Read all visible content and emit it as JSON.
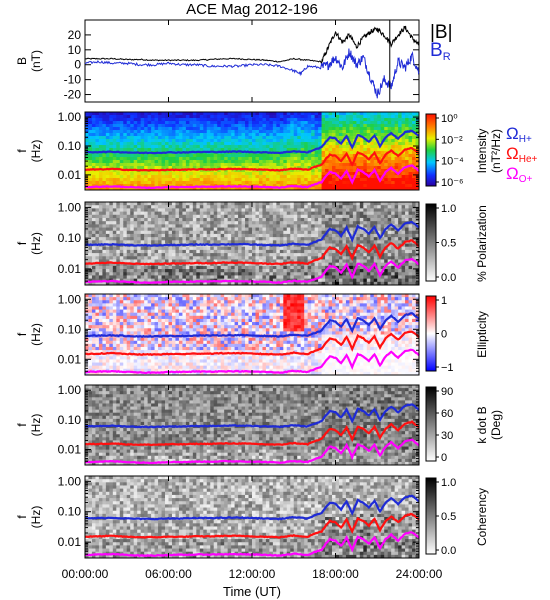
{
  "figure": {
    "title": "ACE Mag 2012-196"
  },
  "colors": {
    "black": "#000000",
    "blue": "#1f2bd6",
    "red": "#ff1010",
    "magenta": "#ff00ff"
  },
  "chart_data": [
    {
      "type": "line",
      "panel": "B",
      "ylabel": "B",
      "yunit": "(nT)",
      "ylim": [
        -25,
        30
      ],
      "yticks": [
        -20,
        -10,
        0,
        10,
        20
      ],
      "legend": [
        "|B|",
        "B_R"
      ],
      "legend_display": {
        "absB": "|B|",
        "br": "B",
        "br_sub": "R"
      },
      "series": [
        {
          "name": "|B|",
          "color": "#000000",
          "x": [
            0,
            1,
            2,
            3,
            4,
            5,
            6,
            7,
            8,
            9,
            10,
            11,
            12,
            13,
            14,
            15,
            16,
            17,
            17.5,
            18,
            18.5,
            19,
            19.5,
            20,
            20.5,
            21,
            21.5,
            22,
            22.5,
            23,
            23.5,
            24
          ],
          "y": [
            4,
            4,
            4,
            3.5,
            3.5,
            3,
            3,
            3,
            3,
            3.5,
            4,
            4,
            3.5,
            3,
            2,
            4,
            3,
            2,
            12,
            22,
            15,
            20,
            12,
            18,
            22,
            24,
            20,
            14,
            20,
            25,
            18,
            13
          ]
        },
        {
          "name": "B_R",
          "color": "#1f2bd6",
          "x": [
            0,
            1,
            2,
            3,
            4,
            5,
            6,
            7,
            8,
            9,
            10,
            11,
            12,
            13,
            14,
            15,
            15.5,
            16,
            17,
            17.5,
            18,
            18.5,
            19,
            19.5,
            20,
            20.5,
            21,
            21.5,
            22,
            22.5,
            23,
            23.5,
            24
          ],
          "y": [
            1,
            2,
            1,
            1,
            0,
            0,
            1,
            0,
            0,
            -1,
            -1,
            -1,
            0,
            0,
            -1,
            -4,
            -6,
            -1,
            -2,
            0,
            5,
            -2,
            9,
            0,
            5,
            -8,
            -20,
            -10,
            -15,
            2,
            -2,
            6,
            -5
          ]
        }
      ],
      "marker_vline_hour": 21.9
    },
    {
      "type": "heatmap",
      "panel": "Intensity",
      "ylabel": "f",
      "yunit": "(Hz)",
      "yscale": "log",
      "ylim": [
        0.003,
        1.5
      ],
      "yticks": [
        "1.00",
        "0.10",
        "0.01"
      ],
      "colorbar": {
        "label": "Intensity",
        "unit": "(nT²/Hz)",
        "scale": "log",
        "ticks": [
          "10⁰",
          "10⁻²",
          "10⁻⁴",
          "10⁻⁶"
        ]
      },
      "legend": {
        "h": "Ω",
        "h_sub": "H+",
        "he": "Ω",
        "he_sub": "He+",
        "o": "Ω",
        "o_sub": "O+"
      }
    },
    {
      "type": "heatmap",
      "panel": "% Polarization",
      "ylabel": "f",
      "yunit": "(Hz)",
      "yscale": "log",
      "colorbar": {
        "label": "% Polarization",
        "ticks": [
          "1.0",
          "0.5",
          "0.0"
        ],
        "range": [
          0,
          1
        ]
      }
    },
    {
      "type": "heatmap",
      "panel": "Ellipticity",
      "ylabel": "f",
      "yunit": "(Hz)",
      "yscale": "log",
      "colorbar": {
        "label": "Ellipticity",
        "ticks": [
          "1",
          "0",
          "−1"
        ],
        "range": [
          -1,
          1
        ]
      }
    },
    {
      "type": "heatmap",
      "panel": "k dot B",
      "ylabel": "f",
      "yunit": "(Hz)",
      "yscale": "log",
      "colorbar": {
        "label": "k dot B",
        "unit": "(Deg)",
        "ticks": [
          "90",
          "60",
          "30",
          "0"
        ],
        "range": [
          0,
          90
        ]
      }
    },
    {
      "type": "heatmap",
      "panel": "Coherency",
      "ylabel": "f",
      "yunit": "(Hz)",
      "yscale": "log",
      "colorbar": {
        "label": "Coherency",
        "ticks": [
          "1.0",
          "0.5",
          "0.0"
        ],
        "range": [
          0,
          1
        ]
      }
    },
    {
      "type": "line",
      "panel": "gyrofrequency overlays",
      "x": [
        0,
        1,
        2,
        3,
        4,
        5,
        6,
        7,
        8,
        9,
        10,
        11,
        12,
        13,
        14,
        15,
        16,
        16.5,
        17,
        17.3,
        17.6,
        18,
        18.4,
        18.8,
        19.2,
        19.6,
        20,
        20.4,
        20.8,
        21.2,
        21.6,
        22,
        22.5,
        23,
        23.5,
        24
      ],
      "series": [
        {
          "name": "ΩH+",
          "color": "#1f2bd6",
          "values": [
            0.06,
            0.062,
            0.063,
            0.06,
            0.058,
            0.058,
            0.06,
            0.06,
            0.062,
            0.062,
            0.063,
            0.064,
            0.062,
            0.06,
            0.058,
            0.066,
            0.06,
            0.075,
            0.09,
            0.14,
            0.2,
            0.18,
            0.12,
            0.22,
            0.09,
            0.24,
            0.2,
            0.14,
            0.23,
            0.1,
            0.2,
            0.28,
            0.18,
            0.3,
            0.34,
            0.22
          ]
        },
        {
          "name": "ΩHe+",
          "color": "#ff1010",
          "values": [
            0.015,
            0.0155,
            0.016,
            0.015,
            0.0145,
            0.0145,
            0.015,
            0.015,
            0.0155,
            0.0155,
            0.016,
            0.016,
            0.0155,
            0.015,
            0.0145,
            0.0165,
            0.015,
            0.019,
            0.0225,
            0.035,
            0.05,
            0.045,
            0.03,
            0.055,
            0.0225,
            0.06,
            0.05,
            0.035,
            0.058,
            0.025,
            0.05,
            0.07,
            0.045,
            0.075,
            0.085,
            0.055
          ]
        },
        {
          "name": "ΩO+",
          "color": "#ff00ff",
          "values": [
            0.0038,
            0.0039,
            0.004,
            0.0038,
            0.0036,
            0.0036,
            0.0038,
            0.0038,
            0.0039,
            0.0039,
            0.004,
            0.004,
            0.0039,
            0.0038,
            0.0036,
            0.0041,
            0.0038,
            0.0047,
            0.0056,
            0.0088,
            0.0125,
            0.0112,
            0.0075,
            0.0138,
            0.0056,
            0.015,
            0.0125,
            0.0088,
            0.0145,
            0.0063,
            0.0125,
            0.0175,
            0.0112,
            0.0188,
            0.0212,
            0.0138
          ]
        }
      ]
    }
  ],
  "xaxis": {
    "label": "Time (UT)",
    "ticks": [
      "00:00:00",
      "06:00:00",
      "12:00:00",
      "18:00:00",
      "24:00:00"
    ],
    "range_hours": [
      0,
      24
    ]
  }
}
